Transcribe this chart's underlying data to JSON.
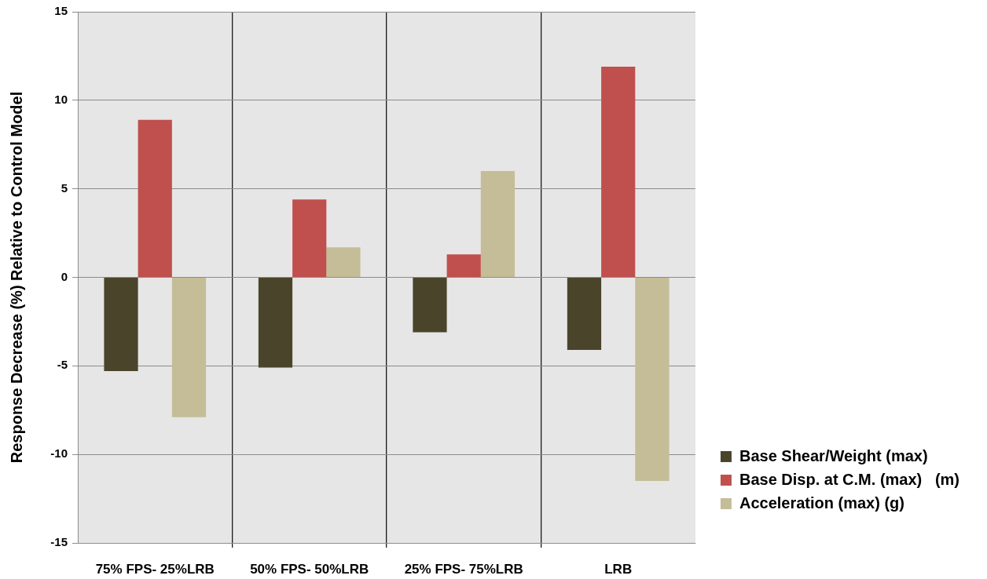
{
  "chart_data": {
    "type": "bar",
    "ylabel": "Response Decrease (%) Relative to Control Model",
    "categories": [
      "75% FPS- 25%LRB",
      "50% FPS- 50%LRB",
      "25% FPS- 75%LRB",
      "LRB"
    ],
    "series": [
      {
        "name": "Base Shear/Weight (max)",
        "color": "#4a452a",
        "values": [
          -5.3,
          -5.1,
          -3.1,
          -4.1
        ]
      },
      {
        "name": "Base Disp. at C.M. (max)   (m)",
        "color": "#c0504d",
        "values": [
          8.9,
          4.4,
          1.3,
          11.9
        ]
      },
      {
        "name": "Acceleration (max) (g)",
        "color": "#c4bd97",
        "values": [
          -7.9,
          1.7,
          6.0,
          -11.5
        ]
      }
    ],
    "ylim": [
      -15,
      15
    ],
    "yticks": [
      -15,
      -10,
      -5,
      0,
      5,
      10,
      15
    ],
    "grid": true,
    "legend": "bottom right"
  }
}
